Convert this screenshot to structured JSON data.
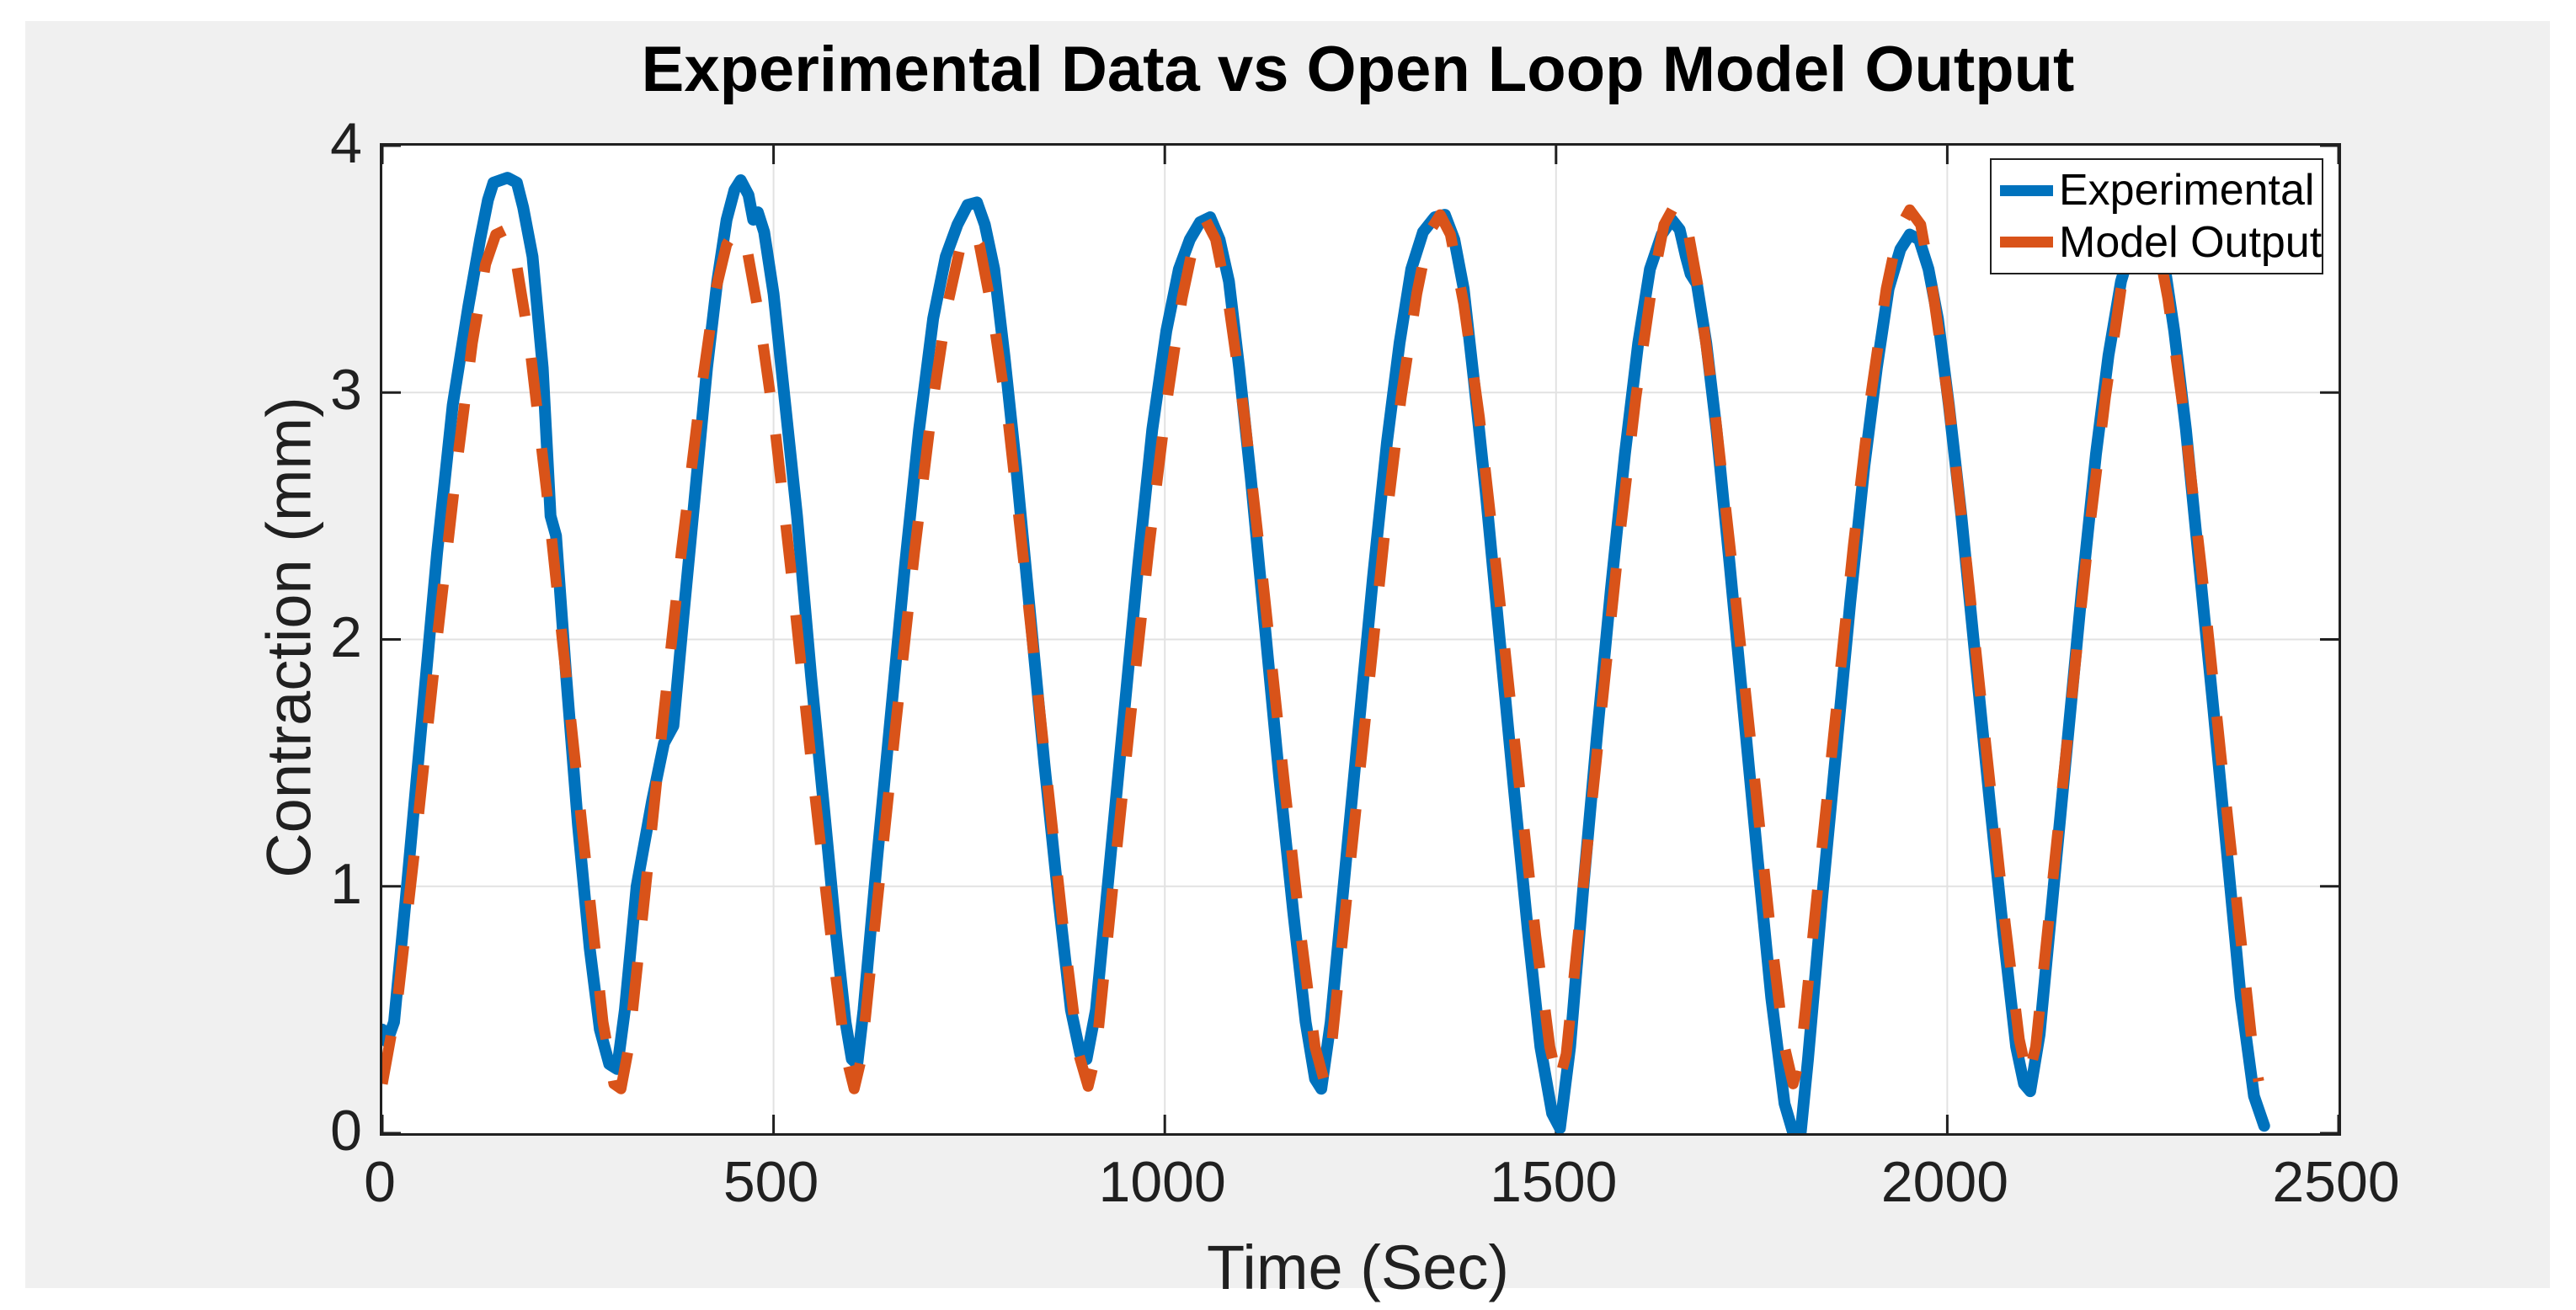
{
  "title": "Experimental Data vs Open Loop Model Output",
  "figure": {
    "page_background": "#FFFFFF",
    "figure_background": "#F0F0F0",
    "plot_background": "#FFFFFF",
    "axes_color": "#202020",
    "grid_color": "#E2E2E2"
  },
  "axes": {
    "xlabel": "Time (Sec)",
    "ylabel": "Contraction (mm)",
    "xlim": [
      0,
      2500
    ],
    "ylim": [
      0,
      4
    ],
    "x_ticks": [
      0,
      500,
      1000,
      1500,
      2000,
      2500
    ],
    "y_ticks": [
      0,
      1,
      2,
      3,
      4
    ],
    "grid": true
  },
  "legend": {
    "position": "northeast",
    "entries": [
      {
        "label": "Experimental",
        "color": "#0072BD",
        "style": "solid"
      },
      {
        "label": "Model Output",
        "color": "#D95319",
        "style": "dashed"
      }
    ]
  },
  "chart_data": {
    "type": "line",
    "title": "Experimental Data vs Open Loop Model Output",
    "xlabel": "Time (Sec)",
    "ylabel": "Contraction (mm)",
    "xlim": [
      0,
      2500
    ],
    "ylim": [
      0,
      4
    ],
    "grid": true,
    "legend_position": "northeast",
    "series": [
      {
        "name": "Experimental",
        "color": "#0072BD",
        "style": "solid",
        "line_width": 14,
        "points": [
          [
            0,
            0.42
          ],
          [
            6,
            0.37
          ],
          [
            15,
            0.45
          ],
          [
            30,
            0.95
          ],
          [
            50,
            1.65
          ],
          [
            70,
            2.35
          ],
          [
            90,
            2.95
          ],
          [
            110,
            3.35
          ],
          [
            125,
            3.62
          ],
          [
            135,
            3.78
          ],
          [
            142,
            3.85
          ],
          [
            160,
            3.87
          ],
          [
            172,
            3.85
          ],
          [
            180,
            3.75
          ],
          [
            192,
            3.55
          ],
          [
            205,
            3.1
          ],
          [
            215,
            2.5
          ],
          [
            222,
            2.42
          ],
          [
            235,
            1.85
          ],
          [
            250,
            1.25
          ],
          [
            265,
            0.75
          ],
          [
            278,
            0.42
          ],
          [
            290,
            0.28
          ],
          [
            300,
            0.26
          ],
          [
            310,
            0.5
          ],
          [
            325,
            1.0
          ],
          [
            345,
            1.35
          ],
          [
            360,
            1.58
          ],
          [
            372,
            1.65
          ],
          [
            385,
            2.1
          ],
          [
            400,
            2.6
          ],
          [
            415,
            3.1
          ],
          [
            428,
            3.45
          ],
          [
            440,
            3.7
          ],
          [
            450,
            3.82
          ],
          [
            458,
            3.86
          ],
          [
            468,
            3.8
          ],
          [
            474,
            3.7
          ],
          [
            480,
            3.73
          ],
          [
            488,
            3.65
          ],
          [
            500,
            3.4
          ],
          [
            515,
            2.95
          ],
          [
            530,
            2.5
          ],
          [
            548,
            1.85
          ],
          [
            565,
            1.3
          ],
          [
            580,
            0.8
          ],
          [
            592,
            0.45
          ],
          [
            600,
            0.3
          ],
          [
            607,
            0.28
          ],
          [
            615,
            0.5
          ],
          [
            632,
            1.1
          ],
          [
            650,
            1.7
          ],
          [
            668,
            2.3
          ],
          [
            686,
            2.85
          ],
          [
            704,
            3.3
          ],
          [
            720,
            3.55
          ],
          [
            735,
            3.68
          ],
          [
            748,
            3.76
          ],
          [
            760,
            3.77
          ],
          [
            770,
            3.68
          ],
          [
            782,
            3.5
          ],
          [
            795,
            3.15
          ],
          [
            810,
            2.7
          ],
          [
            828,
            2.1
          ],
          [
            846,
            1.5
          ],
          [
            864,
            0.95
          ],
          [
            880,
            0.5
          ],
          [
            892,
            0.32
          ],
          [
            900,
            0.3
          ],
          [
            912,
            0.5
          ],
          [
            930,
            1.1
          ],
          [
            948,
            1.7
          ],
          [
            966,
            2.3
          ],
          [
            984,
            2.85
          ],
          [
            1002,
            3.25
          ],
          [
            1018,
            3.5
          ],
          [
            1032,
            3.62
          ],
          [
            1045,
            3.69
          ],
          [
            1058,
            3.71
          ],
          [
            1070,
            3.62
          ],
          [
            1082,
            3.45
          ],
          [
            1095,
            3.1
          ],
          [
            1110,
            2.65
          ],
          [
            1128,
            2.05
          ],
          [
            1146,
            1.45
          ],
          [
            1164,
            0.9
          ],
          [
            1180,
            0.45
          ],
          [
            1192,
            0.22
          ],
          [
            1200,
            0.18
          ],
          [
            1212,
            0.45
          ],
          [
            1230,
            1.05
          ],
          [
            1248,
            1.65
          ],
          [
            1266,
            2.25
          ],
          [
            1284,
            2.8
          ],
          [
            1300,
            3.2
          ],
          [
            1315,
            3.5
          ],
          [
            1330,
            3.65
          ],
          [
            1345,
            3.71
          ],
          [
            1358,
            3.72
          ],
          [
            1370,
            3.62
          ],
          [
            1382,
            3.42
          ],
          [
            1395,
            3.05
          ],
          [
            1410,
            2.6
          ],
          [
            1428,
            2.0
          ],
          [
            1446,
            1.4
          ],
          [
            1464,
            0.82
          ],
          [
            1480,
            0.35
          ],
          [
            1495,
            0.08
          ],
          [
            1505,
            0.02
          ],
          [
            1518,
            0.35
          ],
          [
            1535,
            1.0
          ],
          [
            1552,
            1.6
          ],
          [
            1570,
            2.2
          ],
          [
            1588,
            2.75
          ],
          [
            1605,
            3.2
          ],
          [
            1620,
            3.5
          ],
          [
            1635,
            3.64
          ],
          [
            1648,
            3.7
          ],
          [
            1658,
            3.66
          ],
          [
            1666,
            3.55
          ],
          [
            1672,
            3.48
          ],
          [
            1680,
            3.44
          ],
          [
            1692,
            3.2
          ],
          [
            1705,
            2.85
          ],
          [
            1722,
            2.3
          ],
          [
            1740,
            1.7
          ],
          [
            1758,
            1.1
          ],
          [
            1775,
            0.55
          ],
          [
            1792,
            0.12
          ],
          [
            1805,
            -0.02
          ],
          [
            1812,
            -0.02
          ],
          [
            1822,
            0.3
          ],
          [
            1840,
            0.95
          ],
          [
            1858,
            1.55
          ],
          [
            1876,
            2.15
          ],
          [
            1894,
            2.7
          ],
          [
            1910,
            3.1
          ],
          [
            1925,
            3.42
          ],
          [
            1940,
            3.58
          ],
          [
            1952,
            3.64
          ],
          [
            1964,
            3.62
          ],
          [
            1976,
            3.5
          ],
          [
            1988,
            3.3
          ],
          [
            2002,
            2.95
          ],
          [
            2018,
            2.5
          ],
          [
            2036,
            1.92
          ],
          [
            2054,
            1.35
          ],
          [
            2072,
            0.8
          ],
          [
            2088,
            0.35
          ],
          [
            2098,
            0.2
          ],
          [
            2106,
            0.17
          ],
          [
            2118,
            0.4
          ],
          [
            2136,
            1.0
          ],
          [
            2154,
            1.6
          ],
          [
            2172,
            2.2
          ],
          [
            2190,
            2.75
          ],
          [
            2206,
            3.15
          ],
          [
            2222,
            3.45
          ],
          [
            2238,
            3.62
          ],
          [
            2252,
            3.72
          ],
          [
            2264,
            3.7
          ],
          [
            2276,
            3.55
          ],
          [
            2290,
            3.25
          ],
          [
            2305,
            2.85
          ],
          [
            2322,
            2.3
          ],
          [
            2340,
            1.72
          ],
          [
            2358,
            1.12
          ],
          [
            2375,
            0.55
          ],
          [
            2392,
            0.15
          ],
          [
            2405,
            0.03
          ]
        ]
      },
      {
        "name": "Model Output",
        "color": "#D95319",
        "style": "dashed",
        "line_width": 13,
        "dash_pattern": [
          58,
          50
        ],
        "points": [
          [
            0,
            0.2
          ],
          [
            20,
            0.55
          ],
          [
            45,
            1.25
          ],
          [
            70,
            2.0
          ],
          [
            95,
            2.7
          ],
          [
            115,
            3.2
          ],
          [
            132,
            3.52
          ],
          [
            145,
            3.64
          ],
          [
            158,
            3.66
          ],
          [
            170,
            3.55
          ],
          [
            188,
            3.2
          ],
          [
            210,
            2.6
          ],
          [
            235,
            1.85
          ],
          [
            260,
            1.1
          ],
          [
            282,
            0.45
          ],
          [
            296,
            0.2
          ],
          [
            305,
            0.18
          ],
          [
            315,
            0.35
          ],
          [
            335,
            0.95
          ],
          [
            358,
            1.65
          ],
          [
            382,
            2.35
          ],
          [
            405,
            2.95
          ],
          [
            425,
            3.4
          ],
          [
            440,
            3.6
          ],
          [
            452,
            3.66
          ],
          [
            465,
            3.6
          ],
          [
            482,
            3.3
          ],
          [
            502,
            2.85
          ],
          [
            525,
            2.2
          ],
          [
            550,
            1.45
          ],
          [
            575,
            0.75
          ],
          [
            592,
            0.32
          ],
          [
            603,
            0.18
          ],
          [
            612,
            0.3
          ],
          [
            633,
            0.95
          ],
          [
            656,
            1.65
          ],
          [
            680,
            2.35
          ],
          [
            703,
            2.95
          ],
          [
            722,
            3.35
          ],
          [
            738,
            3.58
          ],
          [
            750,
            3.66
          ],
          [
            763,
            3.6
          ],
          [
            780,
            3.32
          ],
          [
            800,
            2.88
          ],
          [
            823,
            2.22
          ],
          [
            848,
            1.48
          ],
          [
            872,
            0.78
          ],
          [
            890,
            0.32
          ],
          [
            902,
            0.19
          ],
          [
            912,
            0.32
          ],
          [
            933,
            0.98
          ],
          [
            956,
            1.68
          ],
          [
            980,
            2.38
          ],
          [
            1002,
            2.95
          ],
          [
            1022,
            3.38
          ],
          [
            1038,
            3.62
          ],
          [
            1052,
            3.7
          ],
          [
            1065,
            3.62
          ],
          [
            1082,
            3.35
          ],
          [
            1102,
            2.9
          ],
          [
            1125,
            2.25
          ],
          [
            1150,
            1.5
          ],
          [
            1174,
            0.8
          ],
          [
            1192,
            0.35
          ],
          [
            1203,
            0.22
          ],
          [
            1213,
            0.35
          ],
          [
            1234,
            1.0
          ],
          [
            1257,
            1.7
          ],
          [
            1280,
            2.4
          ],
          [
            1302,
            2.98
          ],
          [
            1322,
            3.4
          ],
          [
            1338,
            3.65
          ],
          [
            1352,
            3.72
          ],
          [
            1365,
            3.64
          ],
          [
            1382,
            3.36
          ],
          [
            1402,
            2.9
          ],
          [
            1425,
            2.25
          ],
          [
            1450,
            1.5
          ],
          [
            1474,
            0.8
          ],
          [
            1492,
            0.35
          ],
          [
            1503,
            0.2
          ],
          [
            1513,
            0.32
          ],
          [
            1534,
            0.98
          ],
          [
            1557,
            1.68
          ],
          [
            1580,
            2.38
          ],
          [
            1602,
            2.98
          ],
          [
            1622,
            3.42
          ],
          [
            1638,
            3.68
          ],
          [
            1652,
            3.76
          ],
          [
            1666,
            3.7
          ],
          [
            1682,
            3.42
          ],
          [
            1702,
            2.95
          ],
          [
            1725,
            2.3
          ],
          [
            1750,
            1.55
          ],
          [
            1774,
            0.82
          ],
          [
            1792,
            0.35
          ],
          [
            1803,
            0.2
          ],
          [
            1813,
            0.32
          ],
          [
            1834,
            0.98
          ],
          [
            1857,
            1.68
          ],
          [
            1880,
            2.38
          ],
          [
            1902,
            2.98
          ],
          [
            1922,
            3.42
          ],
          [
            1938,
            3.66
          ],
          [
            1952,
            3.74
          ],
          [
            1966,
            3.68
          ],
          [
            1982,
            3.4
          ],
          [
            2002,
            2.95
          ],
          [
            2025,
            2.3
          ],
          [
            2050,
            1.55
          ],
          [
            2074,
            0.85
          ],
          [
            2092,
            0.38
          ],
          [
            2103,
            0.22
          ],
          [
            2113,
            0.35
          ],
          [
            2134,
            1.0
          ],
          [
            2157,
            1.7
          ],
          [
            2180,
            2.4
          ],
          [
            2202,
            2.98
          ],
          [
            2222,
            3.42
          ],
          [
            2238,
            3.66
          ],
          [
            2252,
            3.72
          ],
          [
            2266,
            3.65
          ],
          [
            2282,
            3.38
          ],
          [
            2302,
            2.92
          ],
          [
            2325,
            2.28
          ],
          [
            2350,
            1.52
          ],
          [
            2374,
            0.82
          ],
          [
            2390,
            0.35
          ],
          [
            2398,
            0.21
          ]
        ]
      }
    ]
  }
}
